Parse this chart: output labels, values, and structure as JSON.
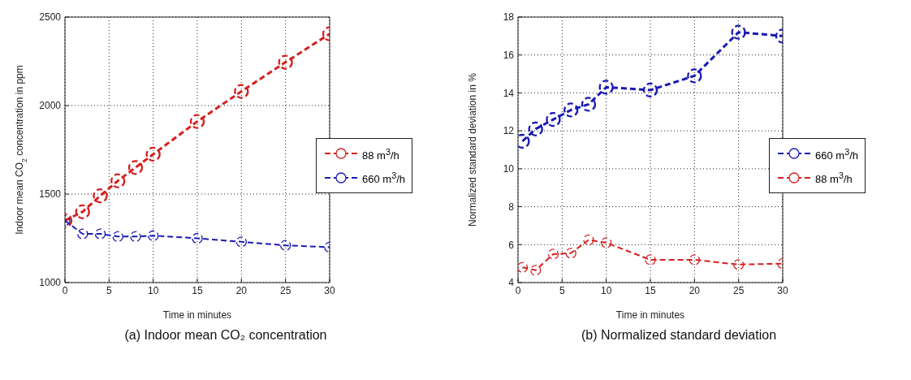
{
  "chart_data": [
    {
      "type": "line",
      "title": "(a) Indoor mean CO₂ concentration",
      "xlabel": "Time in minutes",
      "ylabel": "Indoor mean CO$_{2}$ concentration in ppm",
      "x": [
        0,
        2,
        4,
        6,
        8,
        10,
        15,
        20,
        25,
        30
      ],
      "series": [
        {
          "name": "88 m$^{3}$/h",
          "color": "#d42020",
          "values": [
            1350,
            1400,
            1490,
            1575,
            1650,
            1725,
            1910,
            2080,
            2245,
            2405
          ]
        },
        {
          "name": "660 m$^{3}$/h",
          "color": "#1a1ab4",
          "values": [
            1350,
            1275,
            1275,
            1260,
            1260,
            1265,
            1250,
            1230,
            1210,
            1200
          ]
        }
      ],
      "xlim": [
        0,
        30
      ],
      "xticks": [
        0,
        5,
        10,
        15,
        20,
        25,
        30
      ],
      "ylim": [
        1000,
        2500
      ],
      "yticks": [
        1000,
        1500,
        2000,
        2500
      ],
      "grid": true,
      "legend": "right",
      "marker": "circle",
      "line_style": "dashed"
    },
    {
      "type": "line",
      "title": "(b) Normalized standard deviation",
      "xlabel": "Time in minutes",
      "ylabel": "Normalized standard deviation in %",
      "x": [
        0.5,
        2,
        4,
        6,
        8,
        10,
        15,
        20,
        25,
        30
      ],
      "series": [
        {
          "name": "660 m$^{3}$/h",
          "color": "#1a1ab4",
          "values": [
            11.45,
            12.1,
            12.6,
            13.1,
            13.4,
            14.3,
            14.15,
            14.9,
            17.2,
            17.0
          ]
        },
        {
          "name": "88 m$^{3}$/h",
          "color": "#d42020",
          "values": [
            4.8,
            4.65,
            5.5,
            5.55,
            6.25,
            6.1,
            5.2,
            5.2,
            4.95,
            5.0
          ]
        }
      ],
      "xlim": [
        0,
        30
      ],
      "xticks": [
        0,
        5,
        10,
        15,
        20,
        25,
        30
      ],
      "ylim": [
        4,
        18
      ],
      "yticks": [
        4,
        6,
        8,
        10,
        12,
        14,
        16,
        18
      ],
      "grid": true,
      "legend": "right",
      "marker": "circle",
      "line_style": "dashed"
    }
  ]
}
